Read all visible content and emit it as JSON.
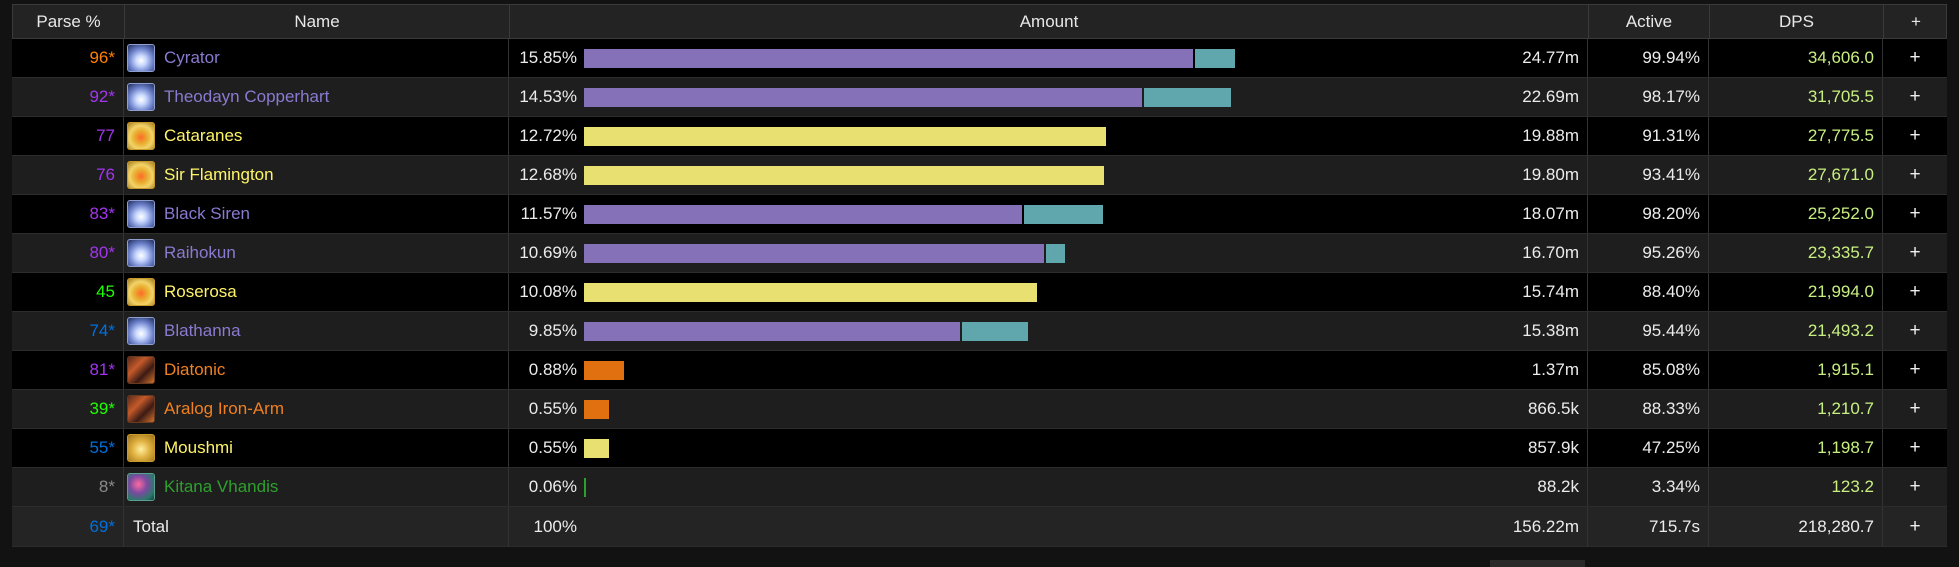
{
  "header": {
    "parse": "Parse %",
    "name": "Name",
    "amount": "Amount",
    "active": "Active",
    "dps": "DPS",
    "plus": "+"
  },
  "players": [
    {
      "parse": "96*",
      "parse_color": "#ff8000",
      "name": "Cyrator",
      "name_color": "#8a7ad0",
      "icon": "holy-priest-icon",
      "icon_class": "holy",
      "pct": "15.85%",
      "bar_frac": 0.8544,
      "bar2_frac": 0.0555,
      "bar_color": "#8471b8",
      "bar2_color": "#5fa7ad",
      "amount": "24.77m",
      "active": "99.94%",
      "dps": "34,606.0"
    },
    {
      "parse": "92*",
      "parse_color": "#a335ee",
      "name": "Theodayn Copperhart",
      "name_color": "#8a7ad0",
      "icon": "holy-priest-icon",
      "icon_class": "holy",
      "pct": "14.53%",
      "bar_frac": 0.7833,
      "bar2_frac": 0.1218,
      "bar_color": "#8471b8",
      "bar2_color": "#5fa7ad",
      "amount": "22.69m",
      "active": "98.17%",
      "dps": "31,705.5"
    },
    {
      "parse": "77",
      "parse_color": "#a335ee",
      "name": "Cataranes",
      "name_color": "#fff468",
      "icon": "rogue-icon",
      "icon_class": "rogue",
      "pct": "12.72%",
      "bar_frac": 0.7321,
      "bar2_frac": 0,
      "bar_color": "#e8e070",
      "bar2_color": "#5fa7ad",
      "amount": "19.88m",
      "active": "91.31%",
      "dps": "27,775.5"
    },
    {
      "parse": "76",
      "parse_color": "#a335ee",
      "name": "Sir Flamington",
      "name_color": "#fff468",
      "icon": "rogue-icon",
      "icon_class": "rogue",
      "pct": "12.68%",
      "bar_frac": 0.7293,
      "bar2_frac": 0,
      "bar_color": "#e8e070",
      "bar2_color": "#5fa7ad",
      "amount": "19.80m",
      "active": "93.41%",
      "dps": "27,671.0"
    },
    {
      "parse": "83*",
      "parse_color": "#a335ee",
      "name": "Black Siren",
      "name_color": "#8a7ad0",
      "icon": "holy-priest-icon",
      "icon_class": "holy",
      "pct": "11.57%",
      "bar_frac": 0.6143,
      "bar2_frac": 0.1106,
      "bar_color": "#8471b8",
      "bar2_color": "#5fa7ad",
      "amount": "18.07m",
      "active": "98.20%",
      "dps": "25,252.0"
    },
    {
      "parse": "80*",
      "parse_color": "#a335ee",
      "name": "Raihokun",
      "name_color": "#8a7ad0",
      "icon": "holy-priest-icon",
      "icon_class": "holy",
      "pct": "10.69%",
      "bar_frac": 0.6452,
      "bar2_frac": 0.026,
      "bar_color": "#8471b8",
      "bar2_color": "#5fa7ad",
      "amount": "16.70m",
      "active": "95.26%",
      "dps": "23,335.7"
    },
    {
      "parse": "45",
      "parse_color": "#1eff00",
      "name": "Roserosa",
      "name_color": "#fff468",
      "icon": "rogue-icon",
      "icon_class": "rogue",
      "pct": "10.08%",
      "bar_frac": 0.6354,
      "bar2_frac": 0,
      "bar_color": "#e8e070",
      "bar2_color": "#5fa7ad",
      "amount": "15.74m",
      "active": "88.40%",
      "dps": "21,994.0"
    },
    {
      "parse": "74*",
      "parse_color": "#0070dd",
      "name": "Blathanna",
      "name_color": "#8a7ad0",
      "icon": "holy-priest-icon",
      "icon_class": "holy",
      "pct": "9.85%",
      "bar_frac": 0.5274,
      "bar2_frac": 0.092,
      "bar_color": "#8471b8",
      "bar2_color": "#5fa7ad",
      "amount": "15.38m",
      "active": "95.44%",
      "dps": "21,493.2"
    },
    {
      "parse": "81*",
      "parse_color": "#a335ee",
      "name": "Diatonic",
      "name_color": "#f08020",
      "icon": "warrior-icon",
      "icon_class": "warrior",
      "pct": "0.88%",
      "bar_frac": 0.0561,
      "bar2_frac": 0,
      "bar_color": "#e07010",
      "bar2_color": "#5fa7ad",
      "amount": "1.37m",
      "active": "85.08%",
      "dps": "1,915.1"
    },
    {
      "parse": "39*",
      "parse_color": "#1eff00",
      "name": "Aralog Iron-Arm",
      "name_color": "#f08020",
      "icon": "warrior-icon",
      "icon_class": "warrior",
      "pct": "0.55%",
      "bar_frac": 0.0351,
      "bar2_frac": 0,
      "bar_color": "#e07010",
      "bar2_color": "#5fa7ad",
      "amount": "866.5k",
      "active": "88.33%",
      "dps": "1,210.7"
    },
    {
      "parse": "55*",
      "parse_color": "#0070dd",
      "name": "Moushmi",
      "name_color": "#fff468",
      "icon": "rogue-icon",
      "icon_class": "rogue2",
      "pct": "0.55%",
      "bar_frac": 0.0351,
      "bar2_frac": 0,
      "bar_color": "#e8e070",
      "bar2_color": "#5fa7ad",
      "amount": "857.9k",
      "active": "47.25%",
      "dps": "1,198.7"
    },
    {
      "parse": "8*",
      "parse_color": "#8a8a8a",
      "name": "Kitana Vhandis",
      "name_color": "#2ea02e",
      "icon": "druid-icon",
      "icon_class": "druid",
      "pct": "0.06%",
      "bar_frac": 0.0035,
      "bar2_frac": 0,
      "bar_color": "#2ea02e",
      "bar2_color": "#5fa7ad",
      "amount": "88.2k",
      "active": "3.34%",
      "dps": "123.2"
    }
  ],
  "total": {
    "parse": "69*",
    "parse_color": "#0070dd",
    "name": "Total",
    "pct": "100%",
    "amount": "156.22m",
    "active": "715.7s",
    "dps": "218,280.7"
  },
  "plus_label": "+"
}
